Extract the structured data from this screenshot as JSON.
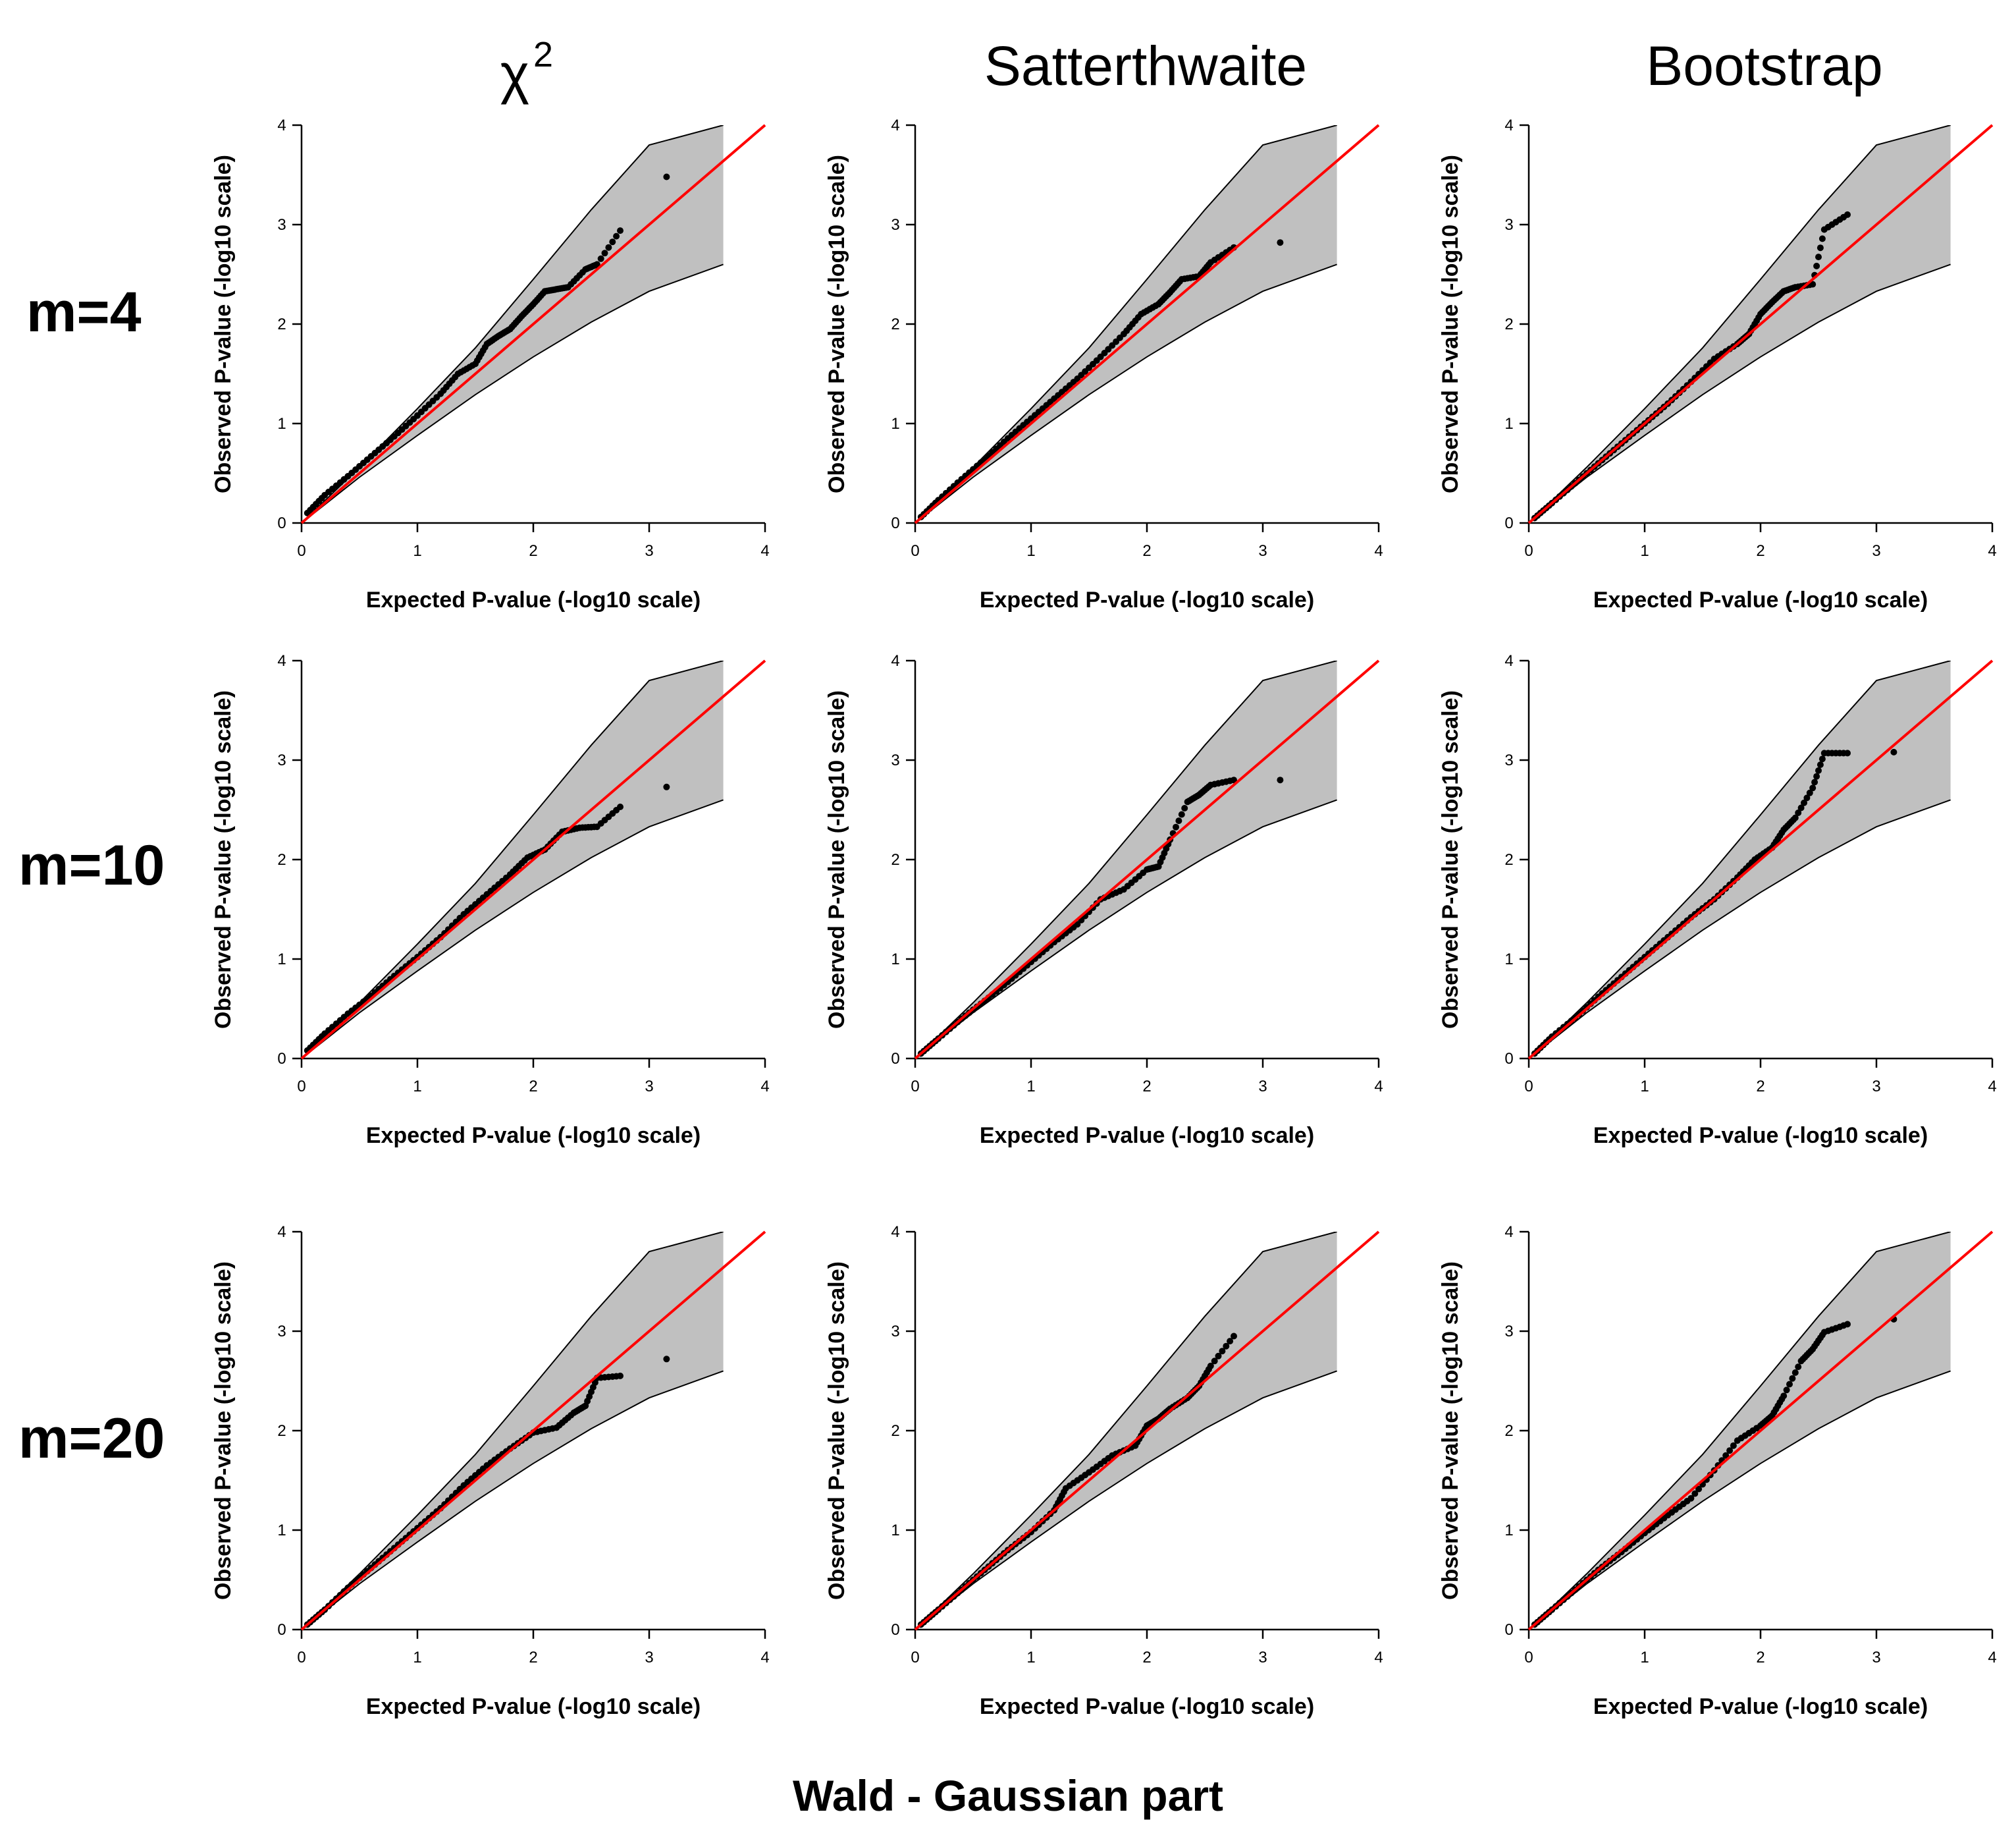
{
  "figure": {
    "columns": [
      {
        "title": "χ",
        "superscript": "2"
      },
      {
        "title": "Satterthwaite",
        "superscript": ""
      },
      {
        "title": "Bootstrap",
        "superscript": ""
      }
    ],
    "rows": [
      {
        "label": "m=4"
      },
      {
        "label": "m=10"
      },
      {
        "label": "m=20"
      }
    ],
    "footer_title": "Wald - Gaussian part"
  },
  "chart_data": [
    {
      "type": "scatter",
      "row": "m=4",
      "column": "χ2",
      "xlabel": "Expected P-value (-log10 scale)",
      "ylabel": "Observed P-value (-log10 scale)",
      "xlim": [
        0,
        4
      ],
      "ylim": [
        0,
        4
      ],
      "x_ticks": [
        "0",
        "1",
        "2",
        "3",
        "4"
      ],
      "y_ticks": [
        "0",
        "1",
        "2",
        "3",
        "4"
      ],
      "reference_line": {
        "x": [
          0,
          4
        ],
        "y": [
          0,
          4
        ],
        "color": "#ff0000"
      },
      "confidence_band": {
        "x": [
          0,
          0.5,
          1,
          1.5,
          2,
          2.5,
          3,
          3.64
        ],
        "lower": [
          0,
          0.46,
          0.88,
          1.29,
          1.67,
          2.02,
          2.33,
          2.6
        ],
        "upper": [
          0,
          0.56,
          1.15,
          1.76,
          2.45,
          3.15,
          3.8,
          4
        ],
        "fill": "#c0c0c0"
      },
      "series": [
        {
          "name": "observed",
          "x": [
            0.05,
            0.2,
            0.4,
            0.6,
            0.8,
            1.0,
            1.2,
            1.35,
            1.5,
            1.6,
            1.7,
            1.8,
            1.9,
            2.0,
            2.1,
            2.2,
            2.3,
            2.45,
            2.55,
            2.75,
            3.15
          ],
          "y": [
            0.1,
            0.28,
            0.47,
            0.67,
            0.87,
            1.08,
            1.3,
            1.5,
            1.6,
            1.8,
            1.88,
            1.95,
            2.08,
            2.2,
            2.33,
            2.35,
            2.37,
            2.55,
            2.6,
            2.94,
            3.48
          ],
          "color": "#000000"
        }
      ]
    },
    {
      "type": "scatter",
      "row": "m=4",
      "column": "Satterthwaite",
      "xlabel": "Expected P-value (-log10 scale)",
      "ylabel": "Observed P-value (-log10 scale)",
      "xlim": [
        0,
        4
      ],
      "ylim": [
        0,
        4
      ],
      "x_ticks": [
        "0",
        "1",
        "2",
        "3",
        "4"
      ],
      "y_ticks": [
        "0",
        "1",
        "2",
        "3",
        "4"
      ],
      "reference_line": {
        "x": [
          0,
          4
        ],
        "y": [
          0,
          4
        ],
        "color": "#ff0000"
      },
      "confidence_band": {
        "x": [
          0,
          0.5,
          1,
          1.5,
          2,
          2.5,
          3,
          3.64
        ],
        "lower": [
          0,
          0.46,
          0.88,
          1.29,
          1.67,
          2.02,
          2.33,
          2.6
        ],
        "upper": [
          0,
          0.56,
          1.15,
          1.76,
          2.45,
          3.15,
          3.8,
          4
        ],
        "fill": "#c0c0c0"
      },
      "series": [
        {
          "name": "observed",
          "x": [
            0.05,
            0.2,
            0.4,
            0.6,
            0.8,
            1.0,
            1.2,
            1.4,
            1.6,
            1.8,
            1.95,
            2.1,
            2.2,
            2.3,
            2.45,
            2.55,
            2.75,
            3.15
          ],
          "y": [
            0.06,
            0.23,
            0.44,
            0.64,
            0.85,
            1.05,
            1.25,
            1.45,
            1.67,
            1.9,
            2.1,
            2.2,
            2.32,
            2.45,
            2.48,
            2.62,
            2.77,
            2.82
          ],
          "color": "#000000"
        }
      ]
    },
    {
      "type": "scatter",
      "row": "m=4",
      "column": "Bootstrap",
      "xlabel": "Expected P-value (-log10 scale)",
      "ylabel": "Observed P-value (-log10 scale)",
      "xlim": [
        0,
        4
      ],
      "ylim": [
        0,
        4
      ],
      "x_ticks": [
        "0",
        "1",
        "2",
        "3",
        "4"
      ],
      "y_ticks": [
        "0",
        "1",
        "2",
        "3",
        "4"
      ],
      "reference_line": {
        "x": [
          0,
          4
        ],
        "y": [
          0,
          4
        ],
        "color": "#ff0000"
      },
      "confidence_band": {
        "x": [
          0,
          0.5,
          1,
          1.5,
          2,
          2.5,
          3,
          3.64
        ],
        "lower": [
          0,
          0.46,
          0.88,
          1.29,
          1.67,
          2.02,
          2.33,
          2.6
        ],
        "upper": [
          0,
          0.56,
          1.15,
          1.76,
          2.45,
          3.15,
          3.8,
          4
        ],
        "fill": "#c0c0c0"
      },
      "series": [
        {
          "name": "observed",
          "x": [
            0.05,
            0.2,
            0.4,
            0.6,
            0.8,
            1.0,
            1.2,
            1.4,
            1.6,
            1.8,
            1.9,
            2.0,
            2.1,
            2.2,
            2.3,
            2.45,
            2.55,
            2.75
          ],
          "y": [
            0.05,
            0.2,
            0.4,
            0.6,
            0.8,
            1.0,
            1.2,
            1.42,
            1.65,
            1.8,
            1.9,
            2.1,
            2.22,
            2.33,
            2.37,
            2.4,
            2.95,
            3.1
          ],
          "color": "#000000"
        }
      ]
    },
    {
      "type": "scatter",
      "row": "m=10",
      "column": "χ2",
      "xlabel": "Expected P-value (-log10 scale)",
      "ylabel": "Observed P-value (-log10 scale)",
      "xlim": [
        0,
        4
      ],
      "ylim": [
        0,
        4
      ],
      "x_ticks": [
        "0",
        "1",
        "2",
        "3",
        "4"
      ],
      "y_ticks": [
        "0",
        "1",
        "2",
        "3",
        "4"
      ],
      "reference_line": {
        "x": [
          0,
          4
        ],
        "y": [
          0,
          4
        ],
        "color": "#ff0000"
      },
      "confidence_band": {
        "x": [
          0,
          0.5,
          1,
          1.5,
          2,
          2.5,
          3,
          3.64
        ],
        "lower": [
          0,
          0.46,
          0.88,
          1.29,
          1.67,
          2.02,
          2.33,
          2.6
        ],
        "upper": [
          0,
          0.56,
          1.15,
          1.76,
          2.45,
          3.15,
          3.8,
          4
        ],
        "fill": "#c0c0c0"
      },
      "series": [
        {
          "name": "observed",
          "x": [
            0.05,
            0.2,
            0.4,
            0.6,
            0.8,
            1.0,
            1.2,
            1.4,
            1.6,
            1.8,
            1.95,
            2.1,
            2.25,
            2.4,
            2.55,
            2.75,
            3.15
          ],
          "y": [
            0.08,
            0.25,
            0.45,
            0.63,
            0.83,
            1.02,
            1.22,
            1.45,
            1.65,
            1.85,
            2.02,
            2.1,
            2.28,
            2.32,
            2.33,
            2.53,
            2.73
          ],
          "color": "#000000"
        }
      ]
    },
    {
      "type": "scatter",
      "row": "m=10",
      "column": "Satterthwaite",
      "xlabel": "Expected P-value (-log10 scale)",
      "ylabel": "Observed P-value (-log10 scale)",
      "xlim": [
        0,
        4
      ],
      "ylim": [
        0,
        4
      ],
      "x_ticks": [
        "0",
        "1",
        "2",
        "3",
        "4"
      ],
      "y_ticks": [
        "0",
        "1",
        "2",
        "3",
        "4"
      ],
      "reference_line": {
        "x": [
          0,
          4
        ],
        "y": [
          0,
          4
        ],
        "color": "#ff0000"
      },
      "confidence_band": {
        "x": [
          0,
          0.5,
          1,
          1.5,
          2,
          2.5,
          3,
          3.64
        ],
        "lower": [
          0,
          0.46,
          0.88,
          1.29,
          1.67,
          2.02,
          2.33,
          2.6
        ],
        "upper": [
          0,
          0.56,
          1.15,
          1.76,
          2.45,
          3.15,
          3.8,
          4
        ],
        "fill": "#c0c0c0"
      },
      "series": [
        {
          "name": "observed",
          "x": [
            0.05,
            0.2,
            0.4,
            0.6,
            0.8,
            1.0,
            1.2,
            1.4,
            1.6,
            1.8,
            2.0,
            2.1,
            2.2,
            2.35,
            2.45,
            2.55,
            2.75,
            3.15
          ],
          "y": [
            0.05,
            0.2,
            0.4,
            0.58,
            0.77,
            0.97,
            1.17,
            1.35,
            1.6,
            1.7,
            1.9,
            1.93,
            2.2,
            2.58,
            2.65,
            2.75,
            2.8,
            2.8
          ],
          "color": "#000000"
        }
      ]
    },
    {
      "type": "scatter",
      "row": "m=10",
      "column": "Bootstrap",
      "xlabel": "Expected P-value (-log10 scale)",
      "ylabel": "Observed P-value (-log10 scale)",
      "xlim": [
        0,
        4
      ],
      "ylim": [
        0,
        4
      ],
      "x_ticks": [
        "0",
        "1",
        "2",
        "3",
        "4"
      ],
      "y_ticks": [
        "0",
        "1",
        "2",
        "3",
        "4"
      ],
      "reference_line": {
        "x": [
          0,
          4
        ],
        "y": [
          0,
          4
        ],
        "color": "#ff0000"
      },
      "confidence_band": {
        "x": [
          0,
          0.5,
          1,
          1.5,
          2,
          2.5,
          3,
          3.64
        ],
        "lower": [
          0,
          0.46,
          0.88,
          1.29,
          1.67,
          2.02,
          2.33,
          2.6
        ],
        "upper": [
          0,
          0.56,
          1.15,
          1.76,
          2.45,
          3.15,
          3.8,
          4
        ],
        "fill": "#c0c0c0"
      },
      "series": [
        {
          "name": "observed",
          "x": [
            0.05,
            0.2,
            0.4,
            0.6,
            0.8,
            1.0,
            1.2,
            1.4,
            1.6,
            1.8,
            1.95,
            2.1,
            2.2,
            2.3,
            2.45,
            2.55,
            2.75,
            3.15
          ],
          "y": [
            0.05,
            0.22,
            0.41,
            0.62,
            0.82,
            1.02,
            1.22,
            1.42,
            1.6,
            1.82,
            2.0,
            2.12,
            2.3,
            2.42,
            2.72,
            3.07,
            3.07,
            3.08
          ],
          "color": "#000000"
        }
      ]
    },
    {
      "type": "scatter",
      "row": "m=20",
      "column": "χ2",
      "xlabel": "Expected P-value (-log10 scale)",
      "ylabel": "Observed P-value (-log10 scale)",
      "xlim": [
        0,
        4
      ],
      "ylim": [
        0,
        4
      ],
      "x_ticks": [
        "0",
        "1",
        "2",
        "3",
        "4"
      ],
      "y_ticks": [
        "0",
        "1",
        "2",
        "3",
        "4"
      ],
      "reference_line": {
        "x": [
          0,
          4
        ],
        "y": [
          0,
          4
        ],
        "color": "#ff0000"
      },
      "confidence_band": {
        "x": [
          0,
          0.5,
          1,
          1.5,
          2,
          2.5,
          3,
          3.64
        ],
        "lower": [
          0,
          0.46,
          0.88,
          1.29,
          1.67,
          2.02,
          2.33,
          2.6
        ],
        "upper": [
          0,
          0.56,
          1.15,
          1.76,
          2.45,
          3.15,
          3.8,
          4
        ],
        "fill": "#c0c0c0"
      },
      "series": [
        {
          "name": "observed",
          "x": [
            0.05,
            0.2,
            0.4,
            0.6,
            0.8,
            1.0,
            1.2,
            1.4,
            1.6,
            1.8,
            2.0,
            2.2,
            2.35,
            2.45,
            2.55,
            2.75,
            3.15
          ],
          "y": [
            0.05,
            0.2,
            0.42,
            0.62,
            0.82,
            1.02,
            1.22,
            1.45,
            1.65,
            1.82,
            1.98,
            2.03,
            2.18,
            2.25,
            2.53,
            2.55,
            2.72
          ],
          "color": "#000000"
        }
      ]
    },
    {
      "type": "scatter",
      "row": "m=20",
      "column": "Satterthwaite",
      "xlabel": "Expected P-value (-log10 scale)",
      "ylabel": "Observed P-value (-log10 scale)",
      "xlim": [
        0,
        4
      ],
      "ylim": [
        0,
        4
      ],
      "x_ticks": [
        "0",
        "1",
        "2",
        "3",
        "4"
      ],
      "y_ticks": [
        "0",
        "1",
        "2",
        "3",
        "4"
      ],
      "reference_line": {
        "x": [
          0,
          4
        ],
        "y": [
          0,
          4
        ],
        "color": "#ff0000"
      },
      "confidence_band": {
        "x": [
          0,
          0.5,
          1,
          1.5,
          2,
          2.5,
          3,
          3.64
        ],
        "lower": [
          0,
          0.46,
          0.88,
          1.29,
          1.67,
          2.02,
          2.33,
          2.6
        ],
        "upper": [
          0,
          0.56,
          1.15,
          1.76,
          2.45,
          3.15,
          3.8,
          4
        ],
        "fill": "#c0c0c0"
      },
      "series": [
        {
          "name": "observed",
          "x": [
            0.05,
            0.2,
            0.4,
            0.6,
            0.8,
            1.0,
            1.2,
            1.3,
            1.5,
            1.7,
            1.9,
            2.0,
            2.1,
            2.2,
            2.35,
            2.45,
            2.55,
            2.75
          ],
          "y": [
            0.05,
            0.2,
            0.4,
            0.6,
            0.8,
            0.98,
            1.2,
            1.42,
            1.58,
            1.75,
            1.85,
            2.05,
            2.12,
            2.22,
            2.33,
            2.45,
            2.65,
            2.95
          ],
          "color": "#000000"
        }
      ]
    },
    {
      "type": "scatter",
      "row": "m=20",
      "column": "Bootstrap",
      "xlabel": "Expected P-value (-log10 scale)",
      "ylabel": "Observed P-value (-log10 scale)",
      "xlim": [
        0,
        4
      ],
      "ylim": [
        0,
        4
      ],
      "x_ticks": [
        "0",
        "1",
        "2",
        "3",
        "4"
      ],
      "y_ticks": [
        "0",
        "1",
        "2",
        "3",
        "4"
      ],
      "reference_line": {
        "x": [
          0,
          4
        ],
        "y": [
          0,
          4
        ],
        "color": "#ff0000"
      },
      "confidence_band": {
        "x": [
          0,
          0.5,
          1,
          1.5,
          2,
          2.5,
          3,
          3.64
        ],
        "lower": [
          0,
          0.46,
          0.88,
          1.29,
          1.67,
          2.02,
          2.33,
          2.6
        ],
        "upper": [
          0,
          0.56,
          1.15,
          1.76,
          2.45,
          3.15,
          3.8,
          4
        ],
        "fill": "#c0c0c0"
      },
      "series": [
        {
          "name": "observed",
          "x": [
            0.05,
            0.2,
            0.4,
            0.6,
            0.8,
            1.0,
            1.2,
            1.4,
            1.6,
            1.8,
            2.0,
            2.1,
            2.2,
            2.35,
            2.45,
            2.55,
            2.75,
            3.15
          ],
          "y": [
            0.05,
            0.2,
            0.4,
            0.6,
            0.78,
            0.97,
            1.15,
            1.32,
            1.6,
            1.9,
            2.05,
            2.15,
            2.35,
            2.7,
            2.82,
            2.99,
            3.07,
            3.12
          ],
          "color": "#000000"
        }
      ]
    }
  ]
}
